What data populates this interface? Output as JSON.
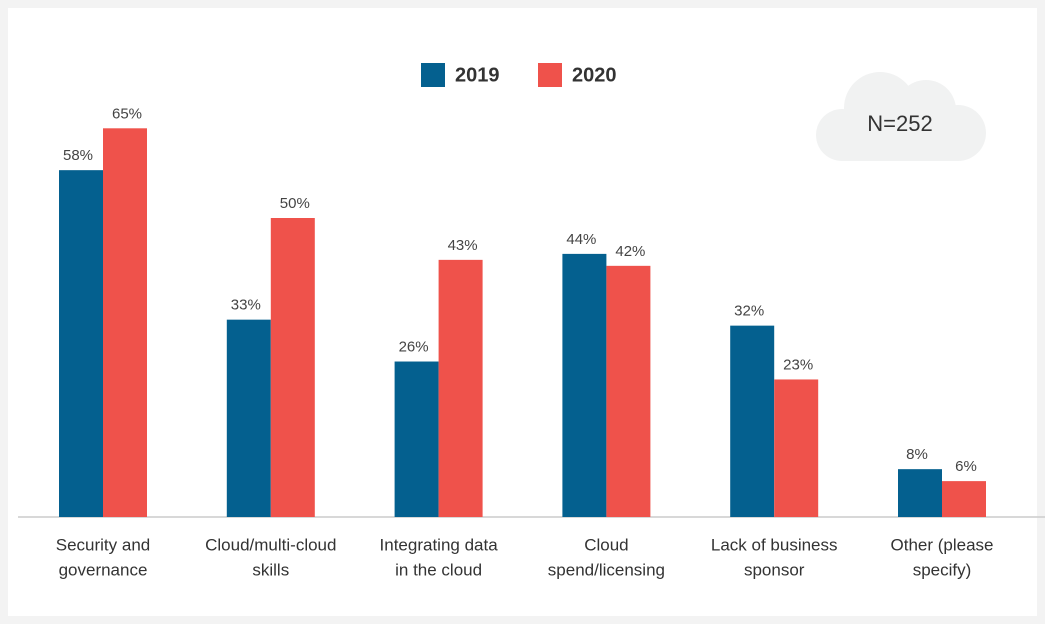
{
  "chart_data": {
    "type": "bar",
    "categories": [
      [
        "Security and",
        "governance"
      ],
      [
        "Cloud/multi-cloud",
        "skills"
      ],
      [
        "Integrating data",
        "in the cloud"
      ],
      [
        "Cloud",
        "spend/licensing"
      ],
      [
        "Lack of business",
        "sponsor"
      ],
      [
        "Other (please",
        "specify)"
      ]
    ],
    "series": [
      {
        "name": "2019",
        "color": "#04608f",
        "values": [
          58,
          33,
          26,
          44,
          32,
          8
        ],
        "value_labels": [
          "58%",
          "33%",
          "26%",
          "44%",
          "32%",
          "8%"
        ]
      },
      {
        "name": "2020",
        "color": "#ef524b",
        "values": [
          65,
          50,
          43,
          42,
          23,
          6
        ],
        "value_labels": [
          "65%",
          "50%",
          "43%",
          "42%",
          "23%",
          "6%"
        ]
      }
    ],
    "legend": "top",
    "annotation": "N=252"
  }
}
